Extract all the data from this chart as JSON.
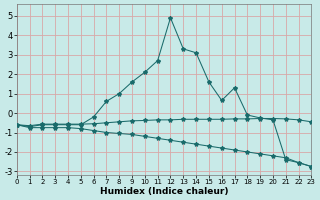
{
  "xlabel": "Humidex (Indice chaleur)",
  "background_color": "#c8eae8",
  "grid_color": "#d8a8a8",
  "line_color": "#1a6b6b",
  "xlim": [
    0,
    23
  ],
  "ylim": [
    -3.2,
    5.6
  ],
  "xticks": [
    0,
    1,
    2,
    3,
    4,
    5,
    6,
    7,
    8,
    9,
    10,
    11,
    12,
    13,
    14,
    15,
    16,
    17,
    18,
    19,
    20,
    21,
    22,
    23
  ],
  "yticks": [
    -3,
    -2,
    -1,
    0,
    1,
    2,
    3,
    4,
    5
  ],
  "line_peak_x": [
    0,
    1,
    2,
    3,
    4,
    5,
    6,
    7,
    8,
    9,
    10,
    11,
    12,
    13,
    14,
    15,
    16,
    17,
    18,
    19,
    20,
    21,
    22,
    23
  ],
  "line_peak_y": [
    -0.6,
    -0.7,
    -0.6,
    -0.6,
    -0.6,
    -0.6,
    -0.2,
    0.6,
    1.0,
    1.6,
    2.1,
    2.7,
    4.9,
    3.3,
    3.1,
    1.6,
    0.65,
    1.3,
    -0.1,
    -0.25,
    -0.35,
    -2.4,
    -2.55,
    -2.75
  ],
  "line_flat_x": [
    0,
    1,
    2,
    3,
    4,
    5,
    6,
    7,
    8,
    9,
    10,
    11,
    12,
    13,
    14,
    15,
    16,
    17,
    18,
    19,
    20,
    21,
    22,
    23
  ],
  "line_flat_y": [
    -0.6,
    -0.65,
    -0.57,
    -0.57,
    -0.57,
    -0.57,
    -0.55,
    -0.5,
    -0.45,
    -0.4,
    -0.38,
    -0.35,
    -0.35,
    -0.32,
    -0.32,
    -0.32,
    -0.32,
    -0.3,
    -0.3,
    -0.28,
    -0.28,
    -0.3,
    -0.35,
    -0.45
  ],
  "line_diag_x": [
    0,
    1,
    2,
    3,
    4,
    5,
    6,
    7,
    8,
    9,
    10,
    11,
    12,
    13,
    14,
    15,
    16,
    17,
    18,
    19,
    20,
    21,
    22,
    23
  ],
  "line_diag_y": [
    -0.6,
    -0.75,
    -0.75,
    -0.75,
    -0.75,
    -0.8,
    -0.9,
    -1.0,
    -1.05,
    -1.1,
    -1.2,
    -1.3,
    -1.4,
    -1.5,
    -1.6,
    -1.7,
    -1.8,
    -1.9,
    -2.0,
    -2.1,
    -2.2,
    -2.3,
    -2.55,
    -2.75
  ]
}
